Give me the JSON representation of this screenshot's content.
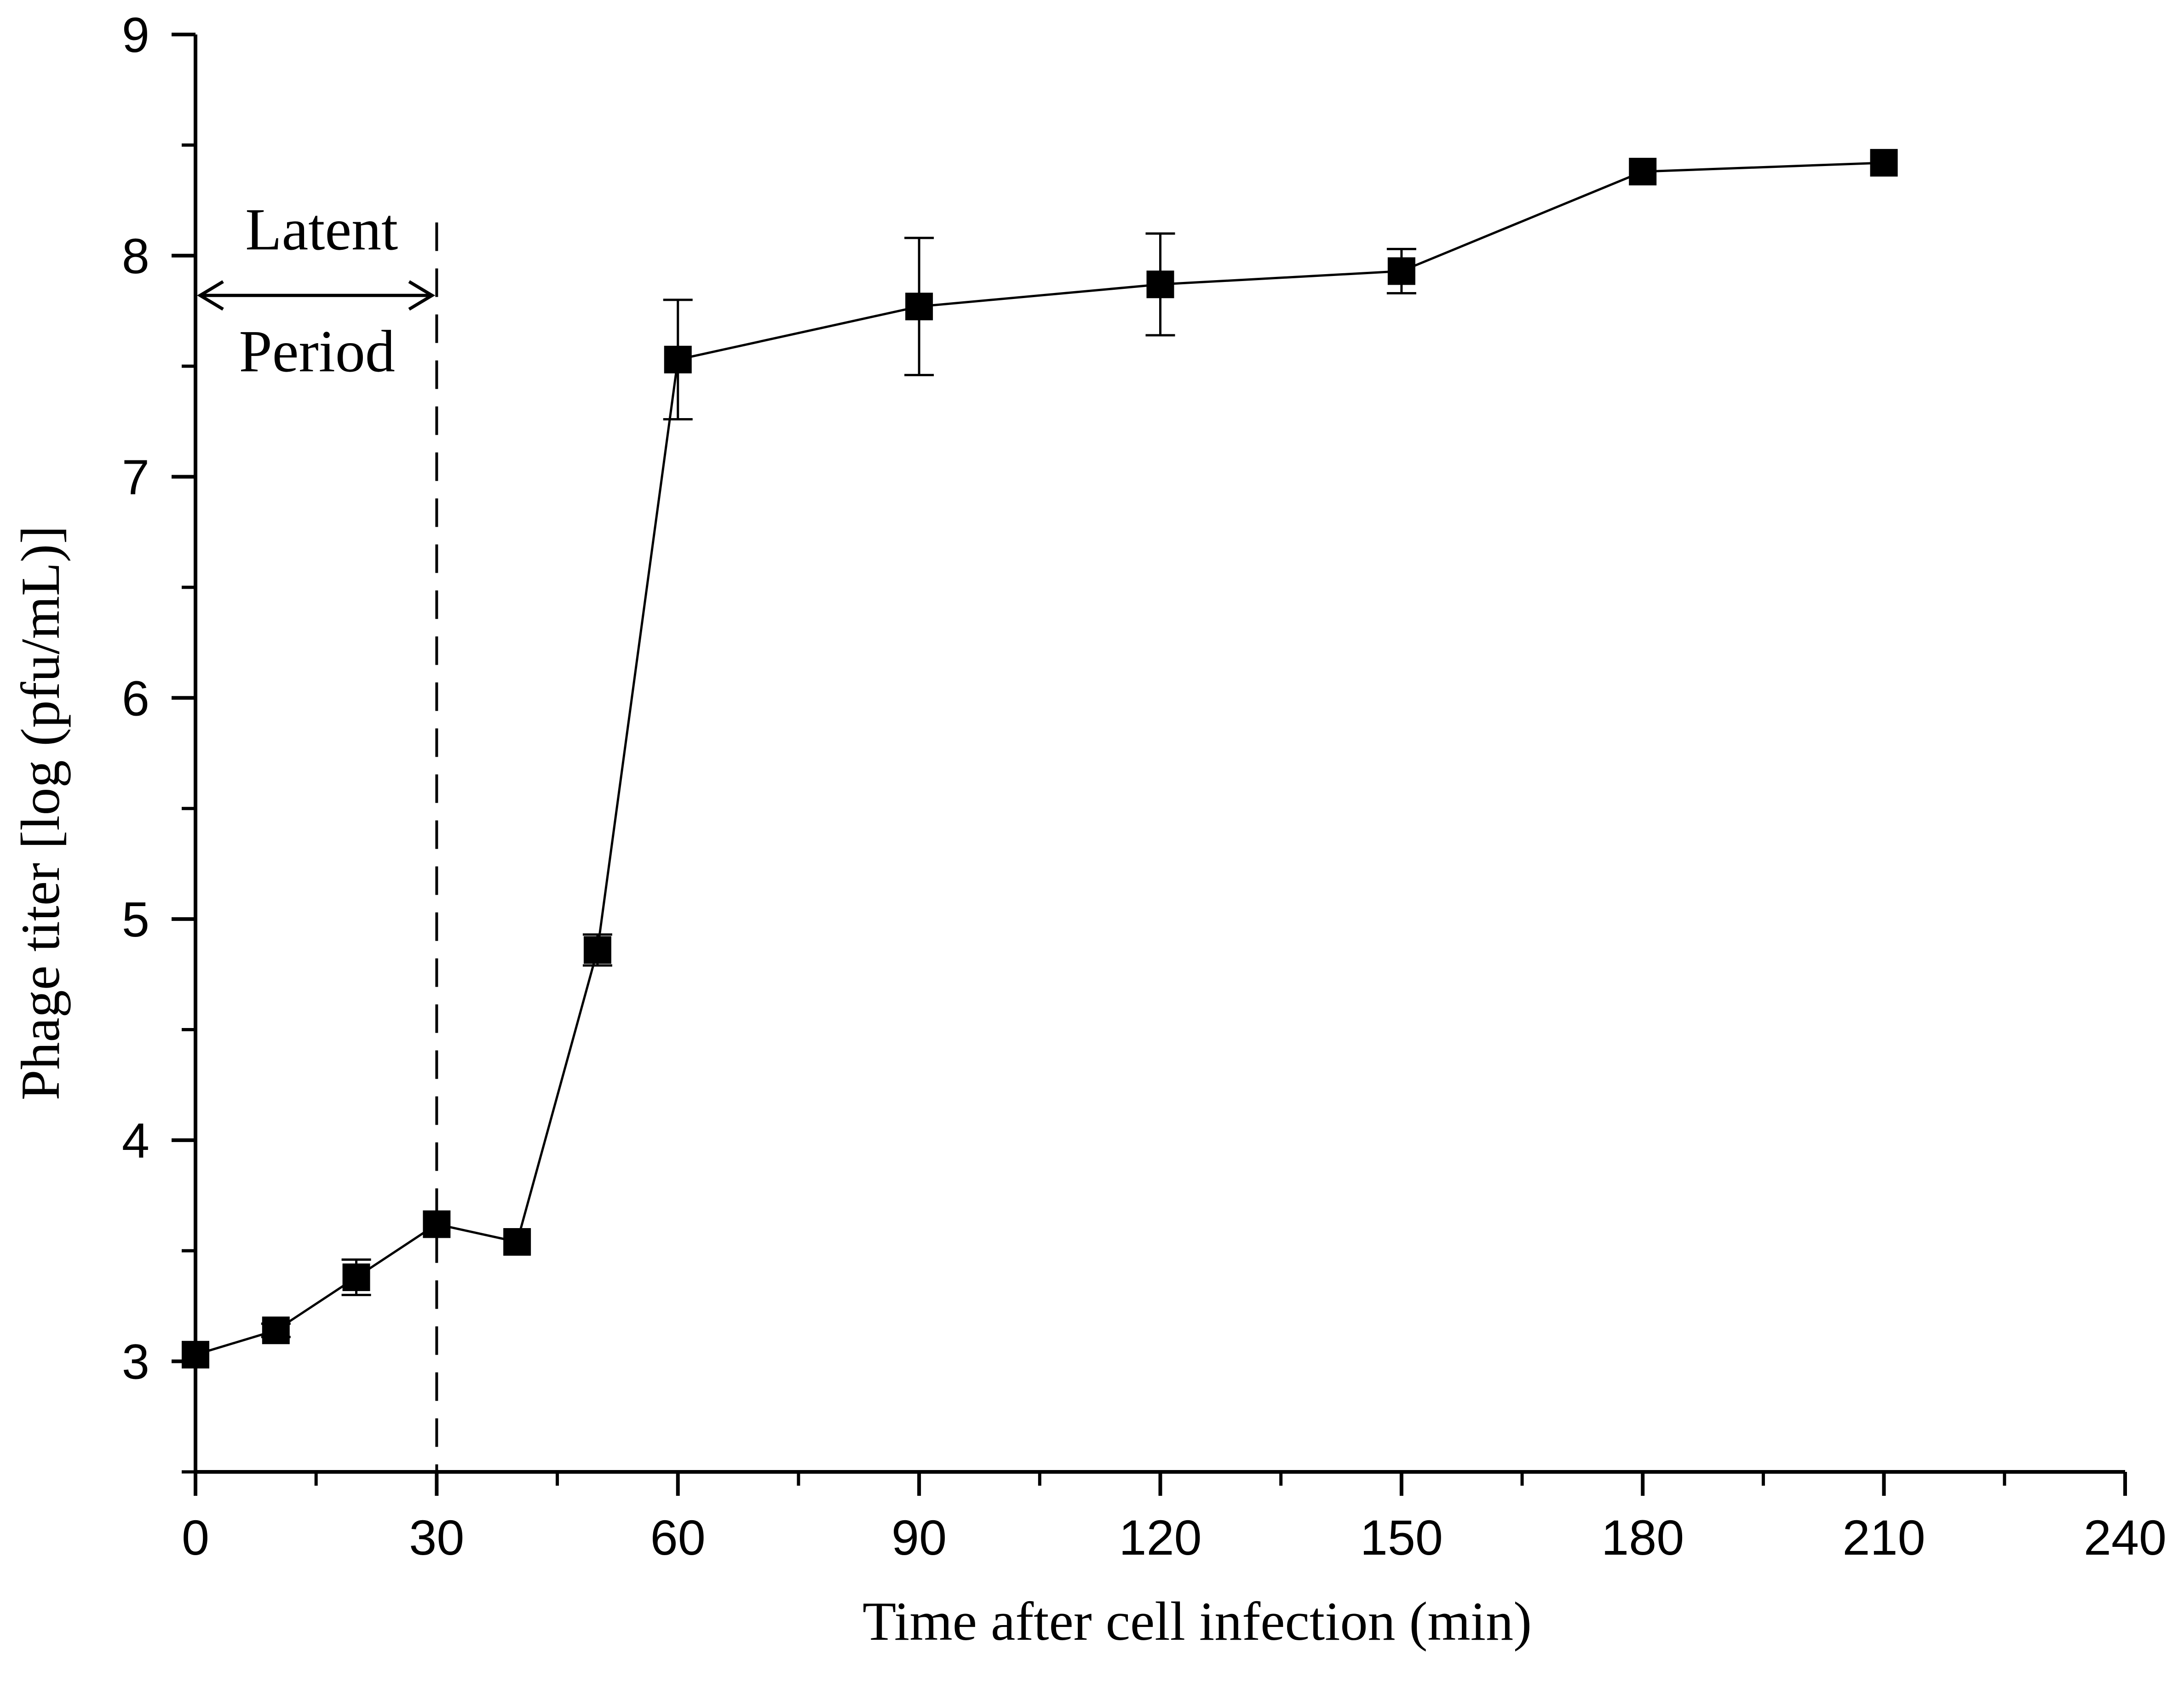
{
  "chart_data": {
    "type": "scatter",
    "title": "",
    "xlabel": "Time after cell infection (min)",
    "ylabel": "Phage titer [log (pfu/mL)]",
    "xlim": [
      0,
      240
    ],
    "ylim": [
      2.5,
      9
    ],
    "x_major_ticks": [
      0,
      30,
      60,
      90,
      120,
      150,
      180,
      210,
      240
    ],
    "x_minor_ticks": [
      15,
      45,
      75,
      105,
      135,
      165,
      195,
      225
    ],
    "y_major_ticks": [
      3,
      4,
      5,
      6,
      7,
      8,
      9
    ],
    "y_minor_ticks": [
      2.5,
      3.5,
      4.5,
      5.5,
      6.5,
      7.5,
      8.5
    ],
    "series": [
      {
        "name": "Phage titer",
        "marker": "square",
        "color": "#000000",
        "connected": true,
        "points": [
          {
            "x": 0,
            "y": 3.03,
            "err": 0.0
          },
          {
            "x": 10,
            "y": 3.14,
            "err": 0.03
          },
          {
            "x": 20,
            "y": 3.38,
            "err": 0.08
          },
          {
            "x": 30,
            "y": 3.62,
            "err": 0.0
          },
          {
            "x": 40,
            "y": 3.54,
            "err": 0.0
          },
          {
            "x": 50,
            "y": 4.86,
            "err": 0.07
          },
          {
            "x": 60,
            "y": 7.53,
            "err": 0.27
          },
          {
            "x": 90,
            "y": 7.77,
            "err": 0.31
          },
          {
            "x": 120,
            "y": 7.87,
            "err": 0.23
          },
          {
            "x": 150,
            "y": 7.93,
            "err": 0.1
          },
          {
            "x": 180,
            "y": 8.38,
            "err": 0.0
          },
          {
            "x": 210,
            "y": 8.42,
            "err": 0.0
          }
        ]
      }
    ],
    "latent_period": {
      "line_top": "Latent",
      "line_bottom": "Period",
      "x_start": 0,
      "x_end": 30,
      "arrow_y": 7.82
    }
  }
}
